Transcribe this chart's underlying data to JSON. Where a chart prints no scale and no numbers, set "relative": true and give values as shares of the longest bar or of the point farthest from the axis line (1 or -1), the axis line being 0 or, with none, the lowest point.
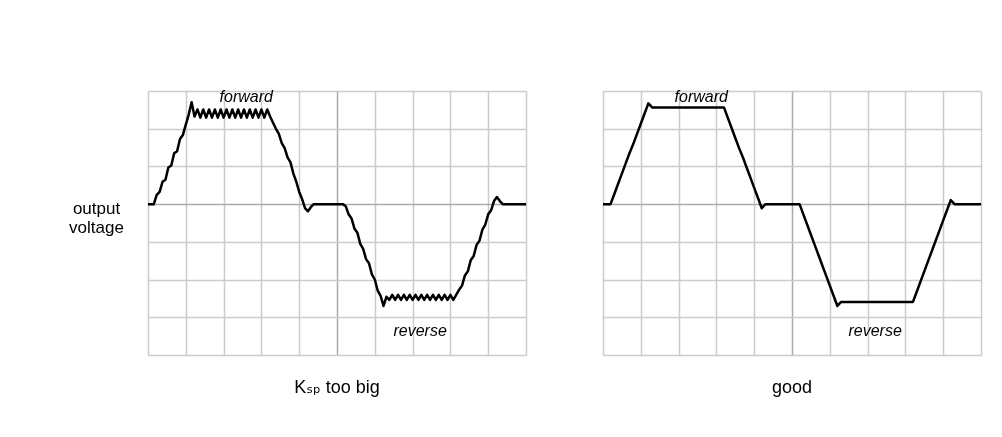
{
  "chart_data": [
    {
      "type": "line",
      "title": "Kₛₚ too big",
      "ylabel": "output voltage",
      "relative": true,
      "grid": true,
      "tick_labels": false,
      "annotations": [
        "forward",
        "reverse"
      ],
      "categories": [
        null,
        null,
        null,
        null,
        null,
        null,
        null,
        null,
        null,
        null,
        null,
        null,
        null,
        null,
        null,
        null,
        null,
        null,
        null,
        null,
        null,
        null,
        null,
        null,
        null,
        null,
        null,
        null,
        null,
        null,
        null,
        null,
        null,
        null,
        null,
        null,
        null,
        null,
        null,
        null,
        null,
        null,
        null,
        null,
        null,
        null,
        null,
        null,
        null,
        null,
        null,
        null,
        null,
        null,
        null,
        null,
        null,
        null,
        null,
        null,
        null,
        null,
        null,
        null,
        null,
        null,
        null,
        null,
        null,
        null,
        null,
        null,
        null,
        null,
        null,
        null,
        null,
        null,
        null,
        null,
        null,
        null,
        null,
        null,
        null,
        null,
        null,
        null,
        null,
        null,
        null,
        null,
        null,
        null,
        null,
        null,
        null,
        null,
        null,
        null,
        null,
        null,
        null,
        null,
        null,
        null,
        null,
        null,
        null,
        null,
        null,
        null,
        null,
        null,
        null,
        null,
        null,
        null,
        null,
        null,
        null,
        null,
        null,
        null,
        null,
        null,
        null,
        null,
        null,
        null,
        null
      ],
      "series": [
        {
          "color": "#000000",
          "values": [
            0,
            0,
            0,
            0.09,
            0.12,
            0.22,
            0.24,
            0.36,
            0.38,
            0.5,
            0.52,
            0.64,
            0.68,
            0.78,
            0.88,
            1.0,
            0.86,
            0.93,
            0.85,
            0.93,
            0.85,
            0.93,
            0.85,
            0.93,
            0.85,
            0.93,
            0.85,
            0.93,
            0.85,
            0.93,
            0.85,
            0.93,
            0.85,
            0.93,
            0.85,
            0.93,
            0.85,
            0.93,
            0.85,
            0.93,
            0.85,
            0.93,
            0.86,
            0.8,
            0.74,
            0.69,
            0.6,
            0.55,
            0.46,
            0.41,
            0.3,
            0.22,
            0.12,
            0.05,
            -0.04,
            -0.07,
            -0.03,
            0,
            0,
            0,
            0,
            0,
            0,
            0,
            0,
            0,
            0,
            0,
            -0.02,
            -0.1,
            -0.14,
            -0.24,
            -0.28,
            -0.39,
            -0.44,
            -0.54,
            -0.58,
            -0.69,
            -0.74,
            -0.85,
            -0.9,
            -1.0,
            -0.91,
            -0.94,
            -0.89,
            -0.94,
            -0.89,
            -0.94,
            -0.89,
            -0.94,
            -0.89,
            -0.94,
            -0.89,
            -0.94,
            -0.89,
            -0.94,
            -0.89,
            -0.94,
            -0.89,
            -0.94,
            -0.89,
            -0.94,
            -0.89,
            -0.94,
            -0.89,
            -0.94,
            -0.89,
            -0.84,
            -0.8,
            -0.7,
            -0.66,
            -0.55,
            -0.51,
            -0.4,
            -0.36,
            -0.25,
            -0.2,
            -0.1,
            -0.06,
            0.03,
            0.07,
            0.03,
            0,
            0,
            0,
            0,
            0,
            0,
            0,
            0,
            0
          ]
        }
      ]
    },
    {
      "type": "line",
      "title": "good",
      "relative": true,
      "grid": true,
      "tick_labels": false,
      "annotations": [
        "forward",
        "reverse"
      ],
      "categories": [
        null,
        null,
        null,
        null,
        null,
        null,
        null,
        null,
        null,
        null,
        null,
        null,
        null,
        null,
        null,
        null,
        null,
        null,
        null,
        null,
        null,
        null,
        null,
        null,
        null,
        null,
        null,
        null,
        null,
        null,
        null,
        null,
        null,
        null,
        null,
        null,
        null,
        null,
        null,
        null,
        null,
        null,
        null,
        null,
        null,
        null,
        null,
        null,
        null,
        null,
        null,
        null,
        null,
        null,
        null,
        null,
        null,
        null,
        null,
        null,
        null,
        null,
        null,
        null,
        null,
        null,
        null,
        null,
        null,
        null,
        null,
        null,
        null,
        null,
        null,
        null,
        null,
        null,
        null,
        null,
        null,
        null,
        null,
        null,
        null,
        null,
        null,
        null,
        null,
        null,
        null,
        null,
        null,
        null,
        null,
        null,
        null,
        null,
        null,
        null,
        null
      ],
      "series": [
        {
          "color": "#000000",
          "values": [
            0,
            0,
            0,
            0.1,
            0.2,
            0.3,
            0.4,
            0.5,
            0.59,
            0.69,
            0.79,
            0.89,
            0.99,
            0.95,
            0.95,
            0.95,
            0.95,
            0.95,
            0.95,
            0.95,
            0.95,
            0.95,
            0.95,
            0.95,
            0.95,
            0.95,
            0.95,
            0.95,
            0.95,
            0.95,
            0.95,
            0.95,
            0.95,
            0.85,
            0.75,
            0.65,
            0.55,
            0.46,
            0.36,
            0.26,
            0.16,
            0.06,
            -0.04,
            0,
            0,
            0,
            0,
            0,
            0,
            0,
            0,
            0,
            0,
            -0.1,
            -0.2,
            -0.3,
            -0.4,
            -0.5,
            -0.6,
            -0.7,
            -0.8,
            -0.9,
            -1.0,
            -0.96,
            -0.96,
            -0.96,
            -0.96,
            -0.96,
            -0.96,
            -0.96,
            -0.96,
            -0.96,
            -0.96,
            -0.96,
            -0.96,
            -0.96,
            -0.96,
            -0.96,
            -0.96,
            -0.96,
            -0.96,
            -0.96,
            -0.96,
            -0.86,
            -0.76,
            -0.66,
            -0.56,
            -0.46,
            -0.36,
            -0.26,
            -0.16,
            -0.06,
            0.04,
            0,
            0,
            0,
            0,
            0,
            0,
            0,
            0
          ]
        }
      ]
    }
  ]
}
